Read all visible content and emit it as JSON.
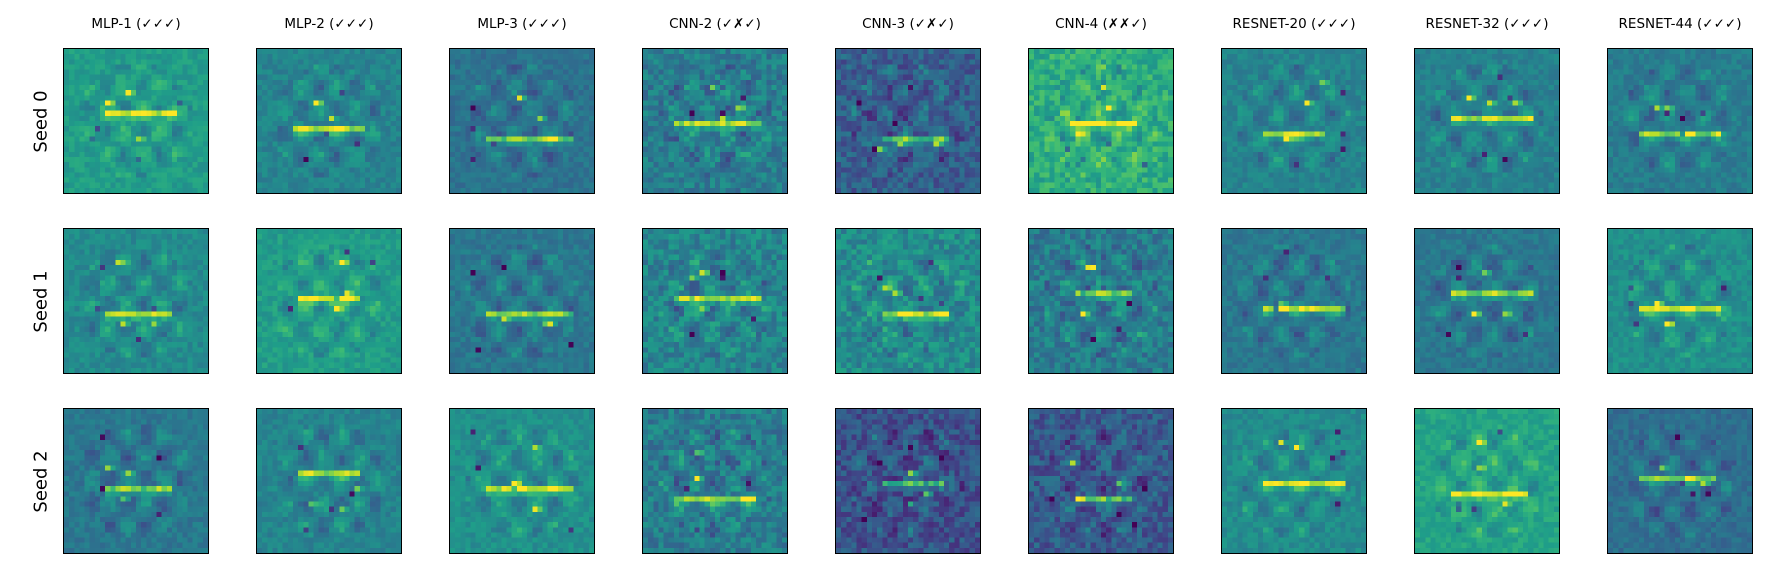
{
  "chart_data": {
    "type": "heatmap",
    "colormap": "viridis",
    "columns": [
      "MLP-1 (✓✓✓)",
      "MLP-2 (✓✓✓)",
      "MLP-3 (✓✓✓)",
      "CNN-2 (✓✗✓)",
      "CNN-3 (✓✗✓)",
      "CNN-4 (✗✗✓)",
      "RESNET-20 (✓✓✓)",
      "RESNET-32 (✓✓✓)",
      "RESNET-44 (✓✓✓)"
    ],
    "rows": [
      "Seed 0",
      "Seed 1",
      "Seed 2"
    ],
    "grid": false
  }
}
